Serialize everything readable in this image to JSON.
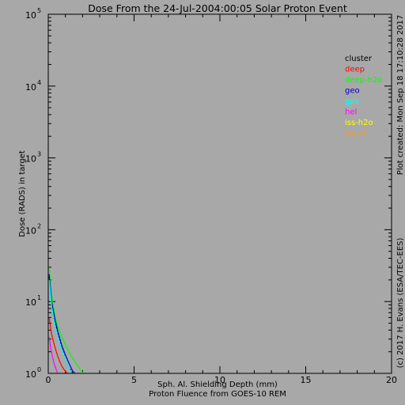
{
  "chart_data": {
    "type": "line",
    "title": "Dose From the 24-Jul-2004:00:05 Solar Proton Event",
    "xlabel": "Sph. Al. Shielding Depth (mm)",
    "xlabel2": "Proton Fluence from GOES-10 REM",
    "ylabel": "Dose (RADS) in target",
    "right_note": "Plot created: Mon Sep 18 17:10:28 2017",
    "right_credit": "(c) 2017 H. Evans (ESA/TEC-EES)",
    "xlim": [
      0,
      20
    ],
    "ylim": [
      1,
      100000
    ],
    "yscale": "log",
    "xticks": [
      {
        "v": 0,
        "label": "0"
      },
      {
        "v": 5,
        "label": "5"
      },
      {
        "v": 10,
        "label": "10"
      },
      {
        "v": 15,
        "label": "15"
      },
      {
        "v": 20,
        "label": "20"
      }
    ],
    "yticks": [
      {
        "v": 1,
        "base": "10",
        "exp": "0"
      },
      {
        "v": 10,
        "base": "10",
        "exp": "1"
      },
      {
        "v": 100,
        "base": "10",
        "exp": "2"
      },
      {
        "v": 1000,
        "base": "10",
        "exp": "3"
      },
      {
        "v": 10000,
        "base": "10",
        "exp": "4"
      },
      {
        "v": 100000,
        "base": "10",
        "exp": "5"
      }
    ],
    "legend_position": "top-right",
    "series": [
      {
        "name": "cluster",
        "color": "#000000",
        "dash": "2,2",
        "x": [
          0.05,
          0.2,
          0.4,
          0.6,
          0.8,
          1.0,
          1.2,
          1.45
        ],
        "y": [
          22,
          9,
          5,
          3.2,
          2.2,
          1.6,
          1.2,
          1.0
        ]
      },
      {
        "name": "deep",
        "color": "#ff0000",
        "dash": "",
        "x": [
          0.05,
          0.2,
          0.35,
          0.5,
          0.65,
          0.8,
          0.95,
          1.1
        ],
        "y": [
          6,
          3.5,
          2.5,
          1.9,
          1.5,
          1.25,
          1.1,
          1.0
        ]
      },
      {
        "name": "deep-h2o",
        "color": "#00ff00",
        "dash": "",
        "x": [
          0.05,
          0.2,
          0.4,
          0.7,
          1.0,
          1.3,
          1.6,
          1.9,
          2.05
        ],
        "y": [
          30,
          12,
          6,
          3.6,
          2.5,
          1.8,
          1.4,
          1.1,
          1.0
        ]
      },
      {
        "name": "geo",
        "color": "#0000cc",
        "dash": "",
        "x": [
          0.05,
          0.2,
          0.4,
          0.6,
          0.8,
          1.0,
          1.2,
          1.4,
          1.55
        ],
        "y": [
          24,
          10,
          5.5,
          3.5,
          2.4,
          1.8,
          1.4,
          1.1,
          1.0
        ]
      },
      {
        "name": "gps",
        "color": "#00ffff",
        "dash": "",
        "x": [
          0.05,
          0.2,
          0.4,
          0.6,
          0.8,
          1.0,
          1.2,
          1.35
        ],
        "y": [
          20,
          8.5,
          4.5,
          3.0,
          2.1,
          1.6,
          1.2,
          1.0
        ]
      },
      {
        "name": "hel",
        "color": "#ff00ff",
        "dash": "",
        "x": [
          0.05,
          0.15,
          0.25,
          0.35,
          0.45,
          0.55
        ],
        "y": [
          3.2,
          2.2,
          1.7,
          1.35,
          1.15,
          1.0
        ]
      },
      {
        "name": "iss-h2o",
        "color": "#ffff00",
        "dash": "",
        "x": [],
        "y": []
      },
      {
        "name": "iss-al",
        "color": "#ff9900",
        "dash": "",
        "x": [],
        "y": []
      }
    ]
  }
}
